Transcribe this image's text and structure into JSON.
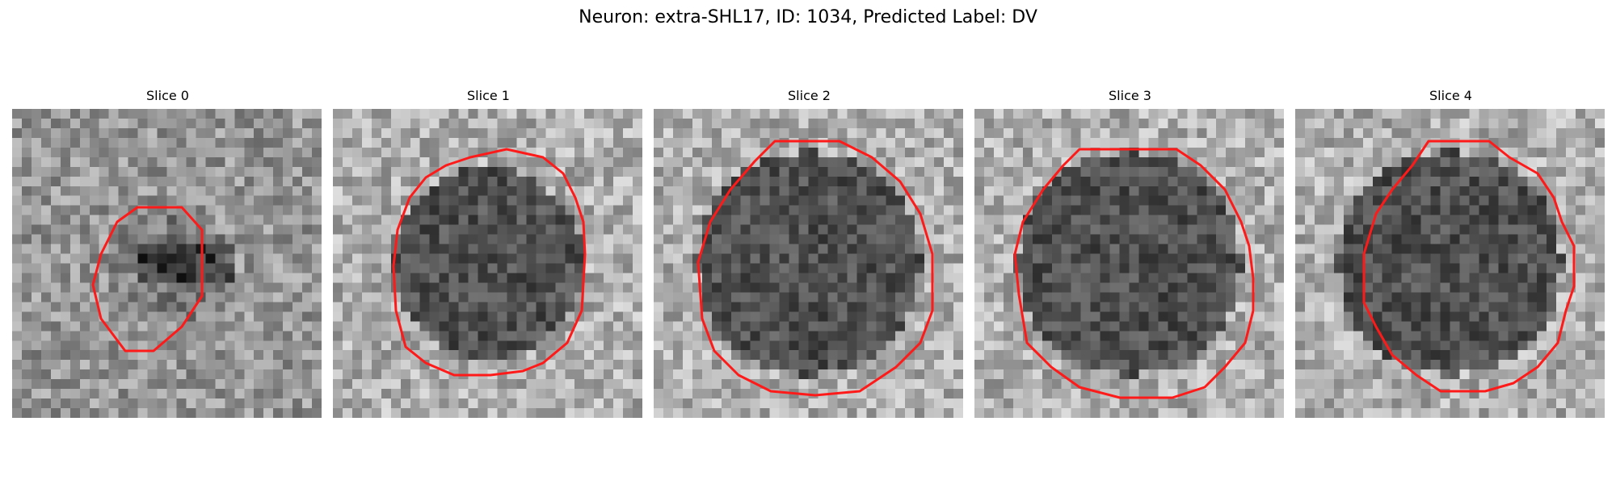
{
  "figure": {
    "title": "Neuron: extra-SHL17, ID: 1034, Predicted Label: DV"
  },
  "slices": [
    {
      "title": "Slice 0"
    },
    {
      "title": "Slice 1"
    },
    {
      "title": "Slice 2"
    },
    {
      "title": "Slice 3"
    },
    {
      "title": "Slice 4"
    }
  ],
  "colors": {
    "contour": "#ff1a1a",
    "background": "#ffffff"
  }
}
